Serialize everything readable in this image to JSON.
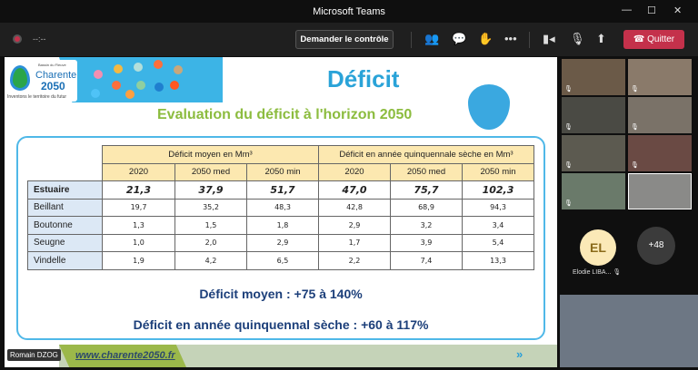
{
  "window": {
    "title": "Microsoft Teams"
  },
  "toolbar": {
    "timer": "--:--",
    "request_control": "Demander le contrôle",
    "leave": "Quitter"
  },
  "slide": {
    "logo": {
      "basin": "Bassin du Fleuve",
      "name": "Charente",
      "year": "2050",
      "slogan": "Inventons le territoire du futur"
    },
    "title": "Déficit",
    "subtitle": "Evaluation du déficit à l'horizon 2050",
    "table": {
      "group_headers": [
        "Déficit moyen en Mm³",
        "Déficit en année quinquennale sèche en Mm³"
      ],
      "sub_headers": [
        "2020",
        "2050 med",
        "2050 min",
        "2020",
        "2050 med",
        "2050 min"
      ],
      "rows": [
        {
          "name": "Estuaire",
          "values": [
            "21,3",
            "37,9",
            "51,7",
            "47,0",
            "75,7",
            "102,3"
          ]
        },
        {
          "name": "Beillant",
          "values": [
            "19,7",
            "35,2",
            "48,3",
            "42,8",
            "68,9",
            "94,3"
          ]
        },
        {
          "name": "Boutonne",
          "values": [
            "1,3",
            "1,5",
            "1,8",
            "2,9",
            "3,2",
            "3,4"
          ]
        },
        {
          "name": "Seugne",
          "values": [
            "1,0",
            "2,0",
            "2,9",
            "1,7",
            "3,9",
            "5,4"
          ]
        },
        {
          "name": "Vindelle",
          "values": [
            "1,9",
            "4,2",
            "6,5",
            "2,2",
            "7,4",
            "13,3"
          ]
        }
      ]
    },
    "summary_1": "Déficit moyen : +75 à 140%",
    "summary_2": "Déficit en année quinquennal sèche : +60 à 117%",
    "url": "www.charente2050.fr",
    "presenter": "Romain DZOG"
  },
  "participants": {
    "avatar_initials": "EL",
    "avatar_name": "Elodie LIBA...",
    "more_count": "+48"
  }
}
